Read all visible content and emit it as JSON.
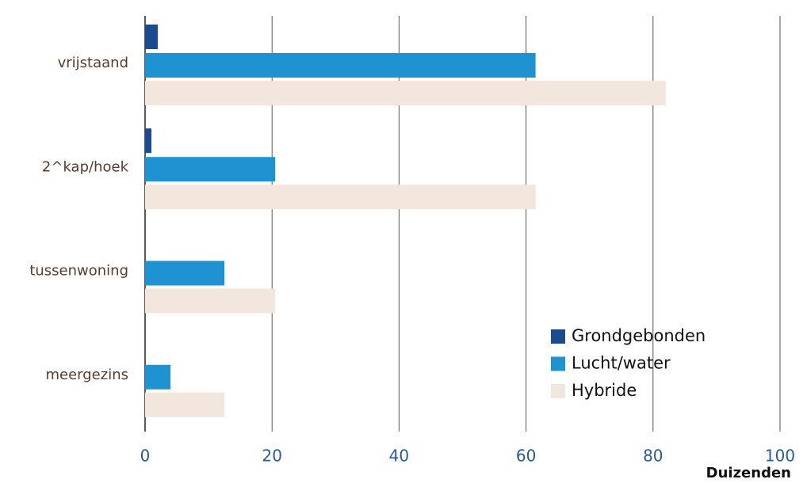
{
  "chart_data": {
    "type": "barh",
    "categories": [
      "vrijstaand",
      "2^kap/hoek",
      "tussenwoning",
      "meergezins"
    ],
    "series": [
      {
        "name": "Grondgebonden",
        "color": "#1b4b8e",
        "values": [
          2,
          1,
          null,
          null
        ]
      },
      {
        "name": "Lucht/water",
        "color": "#1f93d2",
        "values": [
          61.5,
          20.5,
          12.5,
          4
        ]
      },
      {
        "name": "Hybride",
        "color": "#f3e7dd",
        "values": [
          82,
          61.5,
          20.5,
          12.5
        ]
      }
    ],
    "xlim": [
      0,
      100
    ],
    "xticks": [
      0,
      20,
      40,
      60,
      80,
      100
    ],
    "xlabel": "Duizenden",
    "grid": true,
    "legend": "lower right"
  }
}
